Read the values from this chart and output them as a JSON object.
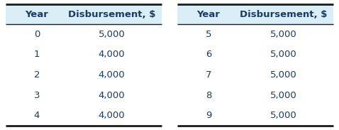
{
  "table1_headers": [
    "Year",
    "Disbursement, $"
  ],
  "table1_years": [
    "0",
    "1",
    "2",
    "3",
    "4"
  ],
  "table1_values": [
    "5,000",
    "4,000",
    "4,000",
    "4,000",
    "4,000"
  ],
  "table2_headers": [
    "Year",
    "Disbursement, $"
  ],
  "table2_years": [
    "5",
    "6",
    "7",
    "8",
    "9"
  ],
  "table2_values": [
    "5,000",
    "5,000",
    "5,000",
    "5,000",
    "5,000"
  ],
  "header_bg": "#d9eef7",
  "text_color": "#1a3a6b",
  "border_color": "#1a1a1a",
  "bg_color": "#ffffff",
  "header_fontsize": 9.5,
  "data_fontsize": 9.5,
  "fig_width": 4.78,
  "fig_height": 1.83,
  "dpi": 100
}
